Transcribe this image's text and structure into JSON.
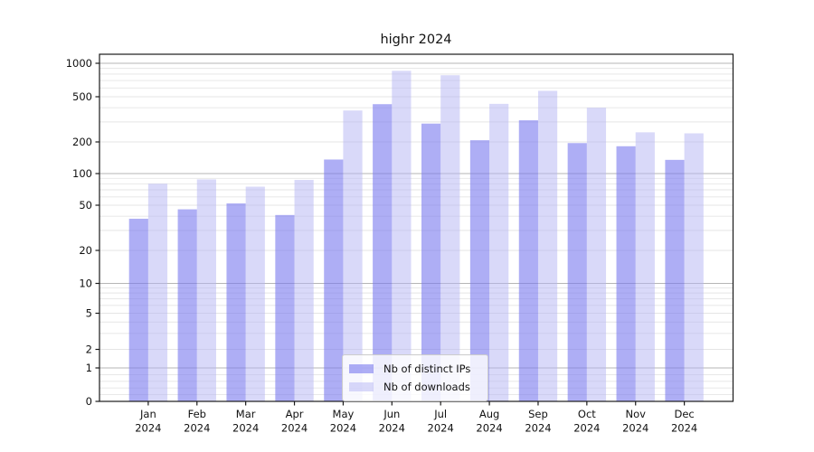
{
  "title": "highr 2024",
  "legend": {
    "items": [
      {
        "label": "Nb of distinct IPs",
        "color": "#7878ee",
        "alpha": 0.6
      },
      {
        "label": "Nb of downloads",
        "color": "#b4b4f4",
        "alpha": 0.5
      }
    ],
    "position": "lower center"
  },
  "chart_data": {
    "type": "bar",
    "title": "highr 2024",
    "categories": [
      "Jan 2024",
      "Feb 2024",
      "Mar 2024",
      "Apr 2024",
      "May 2024",
      "Jun 2024",
      "Jul 2024",
      "Aug 2024",
      "Sep 2024",
      "Oct 2024",
      "Nov 2024",
      "Dec 2024"
    ],
    "series": [
      {
        "name": "Nb of distinct IPs",
        "values": [
          38,
          46,
          52,
          41,
          136,
          430,
          290,
          207,
          310,
          195,
          182,
          135
        ]
      },
      {
        "name": "Nb of downloads",
        "values": [
          80,
          88,
          75,
          87,
          378,
          855,
          780,
          433,
          565,
          400,
          243,
          238
        ]
      }
    ],
    "xlabel": "",
    "ylabel": "",
    "yscale": "symlog",
    "yticks": [
      0,
      1,
      2,
      5,
      10,
      20,
      50,
      100,
      200,
      500,
      1000
    ],
    "ylim": [
      0,
      1200
    ],
    "grid": true,
    "legend_position": "lower center"
  },
  "colors": {
    "grid_major": "#b6b6b6",
    "grid_minor": "#e5e5e5",
    "spine": "#1a1a1a",
    "text": "#111111"
  }
}
